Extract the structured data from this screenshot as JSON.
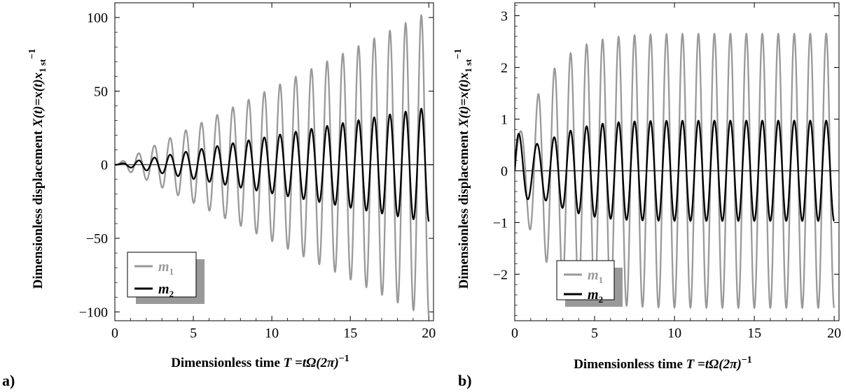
{
  "chart_data": [
    {
      "type": "line",
      "panel_label": "a)",
      "xlabel_main": "Dimensionless time ",
      "xlabel_math": "T",
      "xlabel_rest": " =tΩ(2π)",
      "xlabel_exp": "−1",
      "ylabel_main": "Dimensionless displacement ",
      "ylabel_math": "X(t)=x(t)x",
      "ylabel_sub": "1 st",
      "ylabel_exp": "−1",
      "xlim": [
        0,
        20.3
      ],
      "ylim": [
        -106,
        110
      ],
      "xticks": [
        0,
        5,
        10,
        15,
        20
      ],
      "xtick_labels": [
        "0",
        "5",
        "10",
        "15",
        "20"
      ],
      "yticks": [
        -100,
        -50,
        0,
        50,
        100
      ],
      "ytick_labels": [
        "−100",
        "−50",
        "0",
        "50",
        "100"
      ],
      "legend": {
        "placement": "lower-left"
      },
      "series": [
        {
          "name": "m",
          "name_sub": "1",
          "color": "#999999",
          "stroke": 2.3,
          "model": "resonance",
          "omega": 6.28319,
          "t_end": 20,
          "amp_slope": 5.2,
          "phase": 0
        },
        {
          "name": "m",
          "name_sub": "2",
          "color": "#000000",
          "stroke": 2.3,
          "model": "resonance",
          "omega": 6.28319,
          "t_end": 20,
          "amp_slope": 1.95,
          "phase": 0
        }
      ]
    },
    {
      "type": "line",
      "panel_label": "b)",
      "xlabel_main": "Dimensionless time ",
      "xlabel_math": "T",
      "xlabel_rest": " =tΩ(2π)",
      "xlabel_exp": "−1",
      "ylabel_main": "Dimensionless displacement ",
      "ylabel_math": "X(t)=x(t)x",
      "ylabel_sub": "1 st",
      "ylabel_exp": "−1",
      "xlim": [
        0,
        20.3
      ],
      "ylim": [
        -2.9,
        3.25
      ],
      "xticks": [
        0,
        5,
        10,
        15,
        20
      ],
      "xtick_labels": [
        "0",
        "5",
        "10",
        "15",
        "20"
      ],
      "yticks": [
        -2,
        -1,
        0,
        1,
        2,
        3
      ],
      "ytick_labels": [
        "−2",
        "−1",
        "0",
        "1",
        "2",
        "3"
      ],
      "legend": {
        "placement": "lower-left"
      },
      "series": [
        {
          "name": "m",
          "name_sub": "1",
          "color": "#999999",
          "stroke": 2.3,
          "model": "transient",
          "omega": 6.28319,
          "t_end": 20,
          "steady_amp": 2.65,
          "transient_amp": 0.55,
          "phase": 0.0
        },
        {
          "name": "m",
          "name_sub": "2",
          "color": "#000000",
          "stroke": 2.3,
          "model": "transient",
          "omega": 6.28319,
          "t_end": 20,
          "steady_amp": 0.97,
          "transient_amp": 0.6,
          "phase": 0.0
        }
      ]
    }
  ]
}
